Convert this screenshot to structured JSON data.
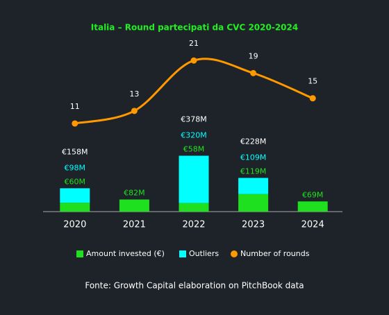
{
  "chart_data": {
    "type": "bar",
    "title": "Italia – Round partecipati da CVC 2020-2024",
    "categories": [
      "2020",
      "2021",
      "2022",
      "2023",
      "2024"
    ],
    "series": [
      {
        "name": "Amount invested (€)",
        "color": "#1fe01f",
        "values": [
          60,
          82,
          58,
          119,
          69
        ],
        "value_labels": [
          "€60M",
          "€82M",
          "€58M",
          "€119M",
          "€69M"
        ]
      },
      {
        "name": "Outliers",
        "color": "#00ffff",
        "values": [
          98,
          null,
          320,
          109,
          null
        ],
        "value_labels": [
          "€98M",
          null,
          "€320M",
          "€109M",
          null
        ]
      },
      {
        "name": "Number of rounds",
        "type": "line",
        "axis": "y2",
        "color": "#ff9900",
        "values": [
          11,
          13,
          21,
          19,
          15
        ]
      }
    ],
    "total_labels": [
      "€158M",
      null,
      "€378M",
      "€228M",
      null
    ],
    "ylim": [
      0,
      1150
    ],
    "y2lim": [
      -3,
      24
    ],
    "source": "Fonte: Growth Capital elaboration on PitchBook data"
  }
}
